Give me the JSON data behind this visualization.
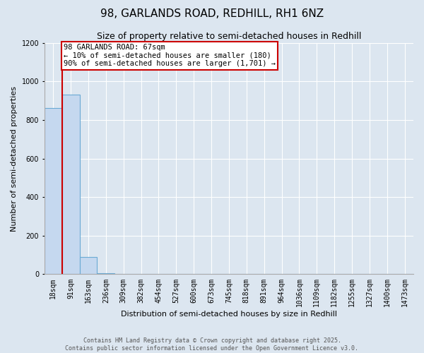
{
  "title": "98, GARLANDS ROAD, REDHILL, RH1 6NZ",
  "subtitle": "Size of property relative to semi-detached houses in Redhill",
  "xlabel": "Distribution of semi-detached houses by size in Redhill",
  "ylabel": "Number of semi-detached properties",
  "bar_labels": [
    "18sqm",
    "91sqm",
    "163sqm",
    "236sqm",
    "309sqm",
    "382sqm",
    "454sqm",
    "527sqm",
    "600sqm",
    "673sqm",
    "745sqm",
    "818sqm",
    "891sqm",
    "964sqm",
    "1036sqm",
    "1109sqm",
    "1182sqm",
    "1255sqm",
    "1327sqm",
    "1400sqm",
    "1473sqm"
  ],
  "bar_values": [
    860,
    930,
    90,
    5,
    0,
    0,
    0,
    0,
    0,
    0,
    0,
    0,
    0,
    0,
    0,
    0,
    0,
    0,
    0,
    0,
    0
  ],
  "bar_color": "#c5d8ef",
  "bar_edge_color": "#6aaad4",
  "ylim": [
    0,
    1200
  ],
  "yticks": [
    0,
    200,
    400,
    600,
    800,
    1000,
    1200
  ],
  "annotation_title": "98 GARLANDS ROAD: 67sqm",
  "annotation_line1": "← 10% of semi-detached houses are smaller (180)",
  "annotation_line2": "90% of semi-detached houses are larger (1,701) →",
  "annotation_box_color": "#ffffff",
  "annotation_border_color": "#cc0000",
  "red_line_color": "#cc0000",
  "background_color": "#dce6f0",
  "plot_bg_color": "#dce6f0",
  "footer_line1": "Contains HM Land Registry data © Crown copyright and database right 2025.",
  "footer_line2": "Contains public sector information licensed under the Open Government Licence v3.0.",
  "title_fontsize": 11,
  "subtitle_fontsize": 9,
  "tick_fontsize": 7,
  "ylabel_fontsize": 8,
  "xlabel_fontsize": 8,
  "footer_fontsize": 6,
  "grid_color": "#ffffff"
}
